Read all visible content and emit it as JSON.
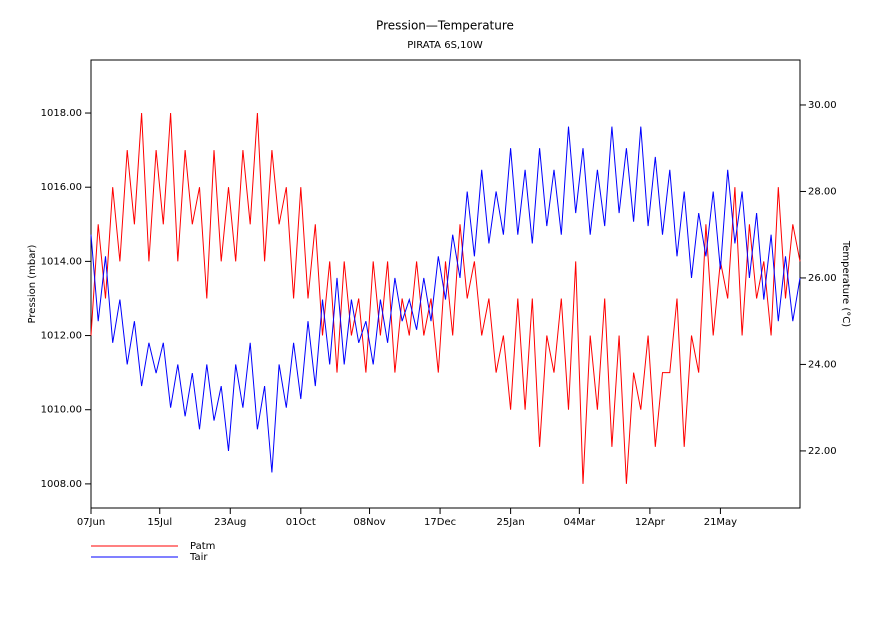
{
  "chart_data": {
    "type": "line",
    "title": "Pression—Temperature",
    "subtitle": "PIRATA 6S,10W",
    "y_label": "Pression (mbar)",
    "y2_label": "Temperature (°C)",
    "x": [
      0,
      4,
      8,
      12,
      16,
      20,
      24,
      28,
      32,
      36,
      40,
      44,
      48,
      52,
      56,
      60,
      64,
      68,
      72,
      76,
      80,
      84,
      88,
      92,
      96,
      100,
      104,
      108,
      112,
      116,
      120,
      124,
      128,
      132,
      136,
      140,
      144,
      148,
      152,
      156,
      160,
      164,
      168,
      172,
      176,
      180,
      184,
      188,
      192,
      196,
      200,
      204,
      208,
      212,
      216,
      220,
      224,
      228,
      232,
      236,
      240,
      244,
      248,
      252,
      256,
      260,
      264,
      268,
      272,
      276,
      280,
      284,
      288,
      292,
      296,
      300,
      304,
      308,
      312,
      316,
      320,
      324,
      328,
      332,
      336,
      340,
      344,
      348,
      352,
      356,
      360,
      364,
      368,
      372,
      376,
      380,
      384,
      388,
      392
    ],
    "xlim": [
      0,
      392
    ],
    "xticks": [
      {
        "value": 0,
        "label": "07Jun"
      },
      {
        "value": 38,
        "label": "15Jul"
      },
      {
        "value": 77,
        "label": "23Aug"
      },
      {
        "value": 116,
        "label": "01Oct"
      },
      {
        "value": 154,
        "label": "08Nov"
      },
      {
        "value": 193,
        "label": "17Dec"
      },
      {
        "value": 232,
        "label": "25Jan"
      },
      {
        "value": 270,
        "label": "04Mar"
      },
      {
        "value": 309,
        "label": "12Apr"
      },
      {
        "value": 348,
        "label": "21May"
      }
    ],
    "ylim": [
      1007.35,
      1019.43
    ],
    "yticks": [
      {
        "value": 1008,
        "label": "1008.00"
      },
      {
        "value": 1010,
        "label": "1010.00"
      },
      {
        "value": 1012,
        "label": "1012.00"
      },
      {
        "value": 1014,
        "label": "1014.00"
      },
      {
        "value": 1016,
        "label": "1016.00"
      },
      {
        "value": 1018,
        "label": "1018.00"
      }
    ],
    "y2lim": [
      20.68,
      31.04
    ],
    "y2ticks": [
      {
        "value": 22,
        "label": "22.00"
      },
      {
        "value": 24,
        "label": "24.00"
      },
      {
        "value": 26,
        "label": "26.00"
      },
      {
        "value": 28,
        "label": "28.00"
      },
      {
        "value": 30,
        "label": "30.00"
      }
    ],
    "series": [
      {
        "name": "Patm",
        "color": "#ff0000",
        "values": [
          1012,
          1015,
          1013,
          1016,
          1014,
          1017,
          1015,
          1018,
          1014,
          1017,
          1015,
          1018,
          1014,
          1017,
          1015,
          1016,
          1013,
          1017,
          1014,
          1016,
          1014,
          1017,
          1015,
          1018,
          1014,
          1017,
          1015,
          1016,
          1013,
          1016,
          1013,
          1015,
          1012,
          1014,
          1011,
          1014,
          1012,
          1013,
          1011,
          1014,
          1012,
          1014,
          1011,
          1013,
          1012,
          1014,
          1012,
          1013,
          1011,
          1014,
          1012,
          1015,
          1013,
          1014,
          1012,
          1013,
          1011,
          1012,
          1010,
          1013,
          1010,
          1013,
          1009,
          1012,
          1011,
          1013,
          1010,
          1014,
          1008,
          1012,
          1010,
          1013,
          1009,
          1012,
          1008,
          1011,
          1010,
          1012,
          1009,
          1011,
          1011,
          1013,
          1009,
          1012,
          1011,
          1015,
          1012,
          1014,
          1013,
          1016,
          1012,
          1015,
          1013,
          1014,
          1012,
          1016,
          1013,
          1015,
          1014
        ]
      },
      {
        "name": "Tair",
        "color": "#0000ff",
        "axis": "y2",
        "values": [
          27,
          25,
          26.5,
          24.5,
          25.5,
          24,
          25,
          23.5,
          24.5,
          23.8,
          24.5,
          23,
          24,
          22.8,
          23.8,
          22.5,
          24,
          22.7,
          23.5,
          22,
          24,
          23,
          24.5,
          22.5,
          23.5,
          21.5,
          24,
          23,
          24.5,
          23.2,
          25,
          23.5,
          25.5,
          24,
          26,
          24,
          25.5,
          24.5,
          25,
          24,
          25.5,
          24.5,
          26,
          25,
          25.5,
          24.8,
          26,
          25,
          26.5,
          25.5,
          27,
          26,
          28,
          26.5,
          28.5,
          26.8,
          28,
          27,
          29,
          27,
          28.5,
          26.8,
          29,
          27.2,
          28.5,
          27,
          29.5,
          27.5,
          29,
          27,
          28.5,
          27.2,
          29.5,
          27.5,
          29,
          27.3,
          29.5,
          27.2,
          28.8,
          27,
          28.5,
          26.5,
          28,
          26,
          27.5,
          26.5,
          28,
          26.2,
          28.5,
          26.8,
          28,
          26,
          27.5,
          25.5,
          27,
          25,
          26.5,
          25,
          26
        ]
      }
    ]
  }
}
